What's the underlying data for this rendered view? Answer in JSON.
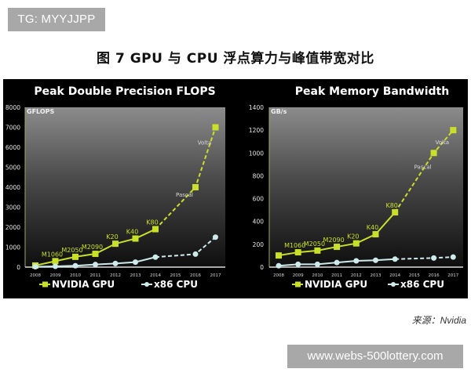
{
  "watermark_top": "TG: MYYJJPP",
  "figure_title": "图 7 GPU 与 CPU 浮点算力与峰值带宽对比",
  "source": "来源：Nvidia",
  "watermark_bottom": "www.webs-500lottery.com",
  "colors": {
    "gpu": "#c8e02a",
    "cpu": "#cfeaea",
    "panel_bg": "#000000",
    "plot_top": "#8a8a8a",
    "plot_bottom": "#111111"
  },
  "legend": {
    "gpu_label": "NVIDIA GPU",
    "cpu_label": "x86 CPU"
  },
  "chart_data": [
    {
      "type": "line",
      "title": "Peak Double Precision FLOPS",
      "ylabel": "GFLOPS",
      "xlabel": "",
      "ylim": [
        0,
        8000
      ],
      "yticks": [
        0,
        1000,
        2000,
        3000,
        4000,
        5000,
        6000,
        7000,
        8000
      ],
      "categories": [
        "2008",
        "2009",
        "2010",
        "2011",
        "2012",
        "2013",
        "2014",
        "2015",
        "2016",
        "2017"
      ],
      "grid": false,
      "legend_position": "bottom",
      "series": [
        {
          "name": "NVIDIA GPU",
          "x": [
            "2008",
            "2009",
            "2010",
            "2011",
            "2012",
            "2013",
            "2014",
            "2016",
            "2017"
          ],
          "values": [
            80,
            300,
            515,
            665,
            1170,
            1430,
            1900,
            4000,
            7000
          ],
          "point_labels": [
            "",
            "M1060",
            "M2050",
            "M2090",
            "K20",
            "K40",
            "K80",
            "Pascal",
            "Volta"
          ],
          "dashed_from": "2014"
        },
        {
          "name": "x86 CPU",
          "x": [
            "2008",
            "2009",
            "2010",
            "2011",
            "2012",
            "2013",
            "2014",
            "2016",
            "2017"
          ],
          "values": [
            20,
            40,
            70,
            130,
            180,
            250,
            500,
            650,
            1500
          ],
          "dashed_from": "2014"
        }
      ]
    },
    {
      "type": "line",
      "title": "Peak Memory Bandwidth",
      "ylabel": "GB/s",
      "xlabel": "",
      "ylim": [
        0,
        1400
      ],
      "yticks": [
        0,
        200,
        400,
        600,
        800,
        1000,
        1200,
        1400
      ],
      "categories": [
        "2008",
        "2009",
        "2010",
        "2011",
        "2012",
        "2013",
        "2014",
        "2015",
        "2016",
        "2017"
      ],
      "grid": false,
      "legend_position": "bottom",
      "series": [
        {
          "name": "NVIDIA GPU",
          "x": [
            "2008",
            "2009",
            "2010",
            "2011",
            "2012",
            "2013",
            "2014",
            "2016",
            "2017"
          ],
          "values": [
            102,
            130,
            145,
            178,
            208,
            288,
            480,
            1000,
            1200
          ],
          "point_labels": [
            "",
            "M1060",
            "M2050",
            "M2090",
            "K20",
            "K40",
            "K80",
            "Pascal",
            "Volta"
          ],
          "dashed_from": "2014"
        },
        {
          "name": "x86 CPU",
          "x": [
            "2008",
            "2009",
            "2010",
            "2011",
            "2012",
            "2013",
            "2014",
            "2016",
            "2017"
          ],
          "values": [
            12,
            25,
            25,
            40,
            55,
            60,
            70,
            80,
            88
          ],
          "dashed_from": "2014"
        }
      ]
    }
  ]
}
